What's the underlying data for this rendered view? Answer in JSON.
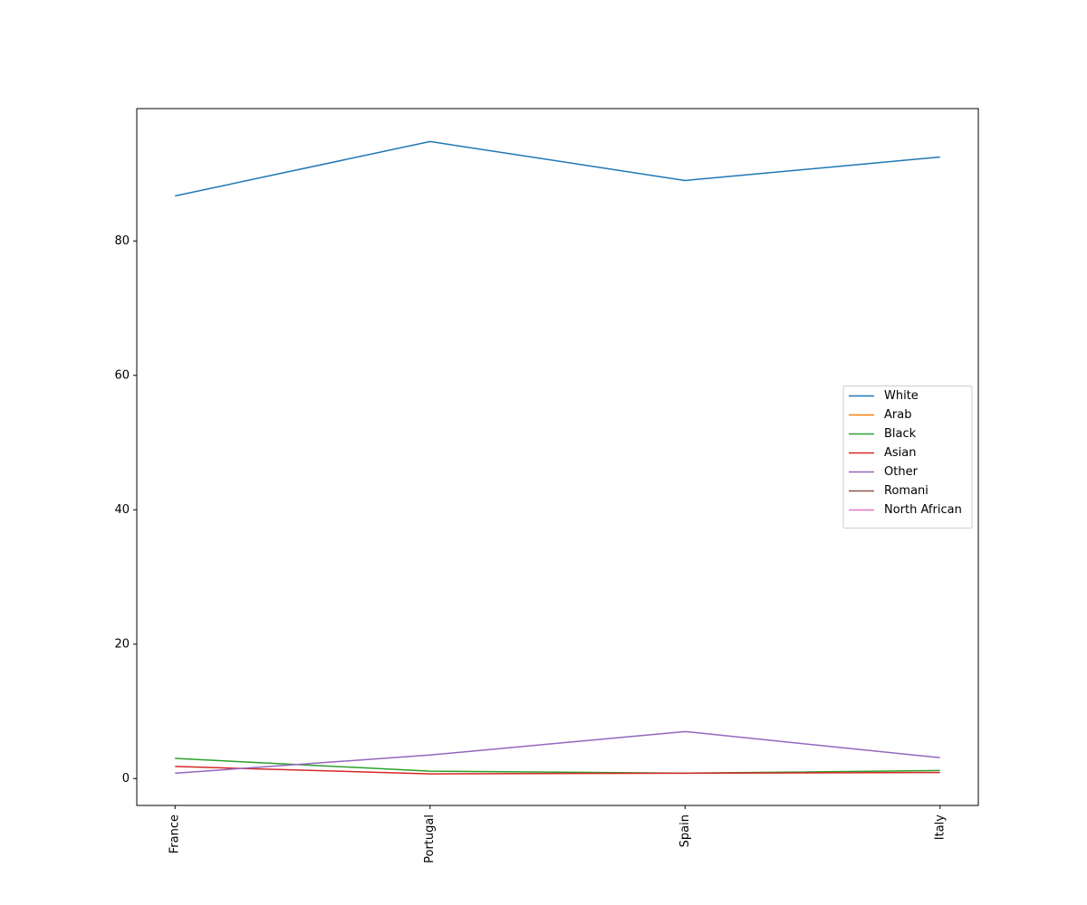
{
  "chart_data": {
    "type": "line",
    "categories": [
      "France",
      "Portugal",
      "Spain",
      "Italy"
    ],
    "series": [
      {
        "name": "White",
        "color": "#1f77b4",
        "values": [
          86.7,
          94.8,
          89.0,
          92.5
        ]
      },
      {
        "name": "Arab",
        "color": "#ff7f0e",
        "values": [
          null,
          null,
          null,
          null
        ]
      },
      {
        "name": "Black",
        "color": "#2ca02c",
        "values": [
          3.0,
          1.1,
          0.8,
          1.2
        ]
      },
      {
        "name": "Asian",
        "color": "#d62728",
        "values": [
          1.8,
          0.7,
          0.8,
          0.9
        ]
      },
      {
        "name": "Other",
        "color": "#9467bd",
        "values": [
          0.8,
          3.5,
          7.0,
          3.1
        ]
      },
      {
        "name": "Romani",
        "color": "#8c564b",
        "values": [
          null,
          null,
          null,
          null
        ]
      },
      {
        "name": "North African",
        "color": "#e377c2",
        "values": [
          null,
          null,
          null,
          null
        ]
      }
    ],
    "ylim": [
      -4.0,
      99.7
    ],
    "yticks": [
      0,
      20,
      40,
      60,
      80
    ],
    "grid": false,
    "legend": "center right"
  }
}
